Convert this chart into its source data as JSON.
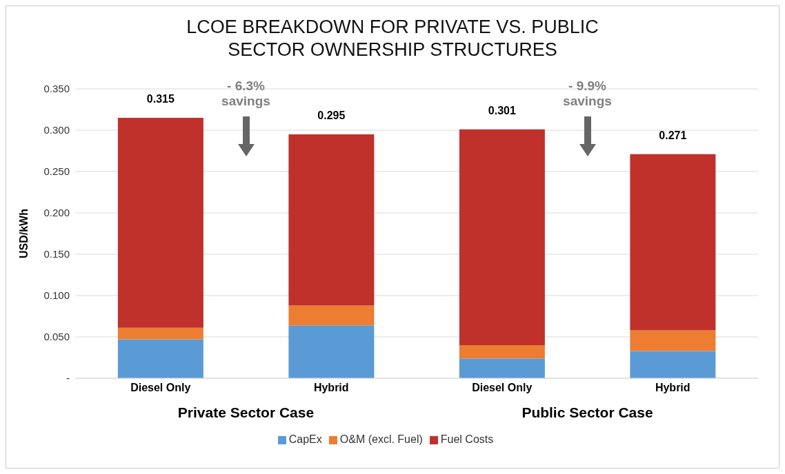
{
  "chart_data": {
    "type": "bar",
    "title": "LCOE BREAKDOWN FOR PRIVATE VS. PUBLIC SECTOR OWNERSHIP STRUCTURES",
    "ylabel": "USD/kWh",
    "categories": [
      "Diesel Only",
      "Hybrid",
      "Diesel Only",
      "Hybrid"
    ],
    "series": [
      {
        "name": "CapEx",
        "color": "#5b9bd5",
        "values": [
          0.047,
          0.064,
          0.024,
          0.033
        ]
      },
      {
        "name": "O&M (excl. Fuel)",
        "color": "#ed7d31",
        "values": [
          0.014,
          0.024,
          0.016,
          0.025
        ]
      },
      {
        "name": "Fuel Costs",
        "color": "#c0312b",
        "values": [
          0.254,
          0.207,
          0.261,
          0.213
        ]
      }
    ],
    "stacked": true,
    "totals": [
      "0.315",
      "0.295",
      "0.301",
      "0.271"
    ],
    "ylim": [
      0,
      0.35
    ],
    "yticks": [
      {
        "value": 0,
        "label": "-"
      },
      {
        "value": 0.05,
        "label": "0.050"
      },
      {
        "value": 0.1,
        "label": "0.100"
      },
      {
        "value": 0.15,
        "label": "0.150"
      },
      {
        "value": 0.2,
        "label": "0.200"
      },
      {
        "value": 0.25,
        "label": "0.250"
      },
      {
        "value": 0.3,
        "label": "0.300"
      },
      {
        "value": 0.35,
        "label": "0.350"
      }
    ],
    "grid": "y",
    "legend": "bottom",
    "annotations": [
      "Private Sector Case",
      "Public Sector Case",
      "- 6.3% savings",
      "- 9.9% savings"
    ]
  }
}
